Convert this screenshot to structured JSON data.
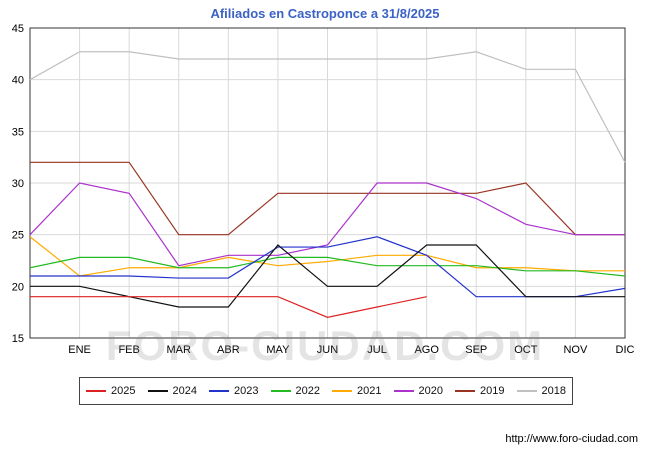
{
  "chart_data": {
    "type": "line",
    "title": "Afiliados en Castroponce a 31/8/2025",
    "title_color": "#3b62c4",
    "x_labels": [
      "ENE",
      "FEB",
      "MAR",
      "ABR",
      "MAY",
      "JUN",
      "JUL",
      "AGO",
      "SEP",
      "OCT",
      "NOV",
      "DIC"
    ],
    "ylim": [
      15,
      45
    ],
    "yticks": [
      15,
      20,
      25,
      30,
      35,
      40,
      45
    ],
    "grid": true,
    "legend_position": "bottom",
    "series": [
      {
        "name": "2025",
        "color": "#dd2222",
        "values": [
          19,
          19,
          19,
          19,
          19,
          19,
          17,
          18,
          19
        ]
      },
      {
        "name": "2024",
        "color": "#111111",
        "values": [
          20,
          20,
          19,
          18,
          18,
          24,
          20,
          20,
          24,
          24,
          19,
          19,
          19
        ]
      },
      {
        "name": "2023",
        "color": "#2233cc",
        "values": [
          21,
          21,
          21,
          20.8,
          20.8,
          23.8,
          23.8,
          24.8,
          23,
          19,
          19,
          19,
          19.8
        ]
      },
      {
        "name": "2022",
        "color": "#22bb22",
        "values": [
          21.8,
          22.8,
          22.8,
          21.8,
          21.8,
          22.8,
          22.8,
          22,
          22,
          22,
          21.5,
          21.5,
          21
        ]
      },
      {
        "name": "2021",
        "color": "#ffaa00",
        "values": [
          24.8,
          21,
          21.8,
          21.8,
          22.8,
          22,
          22.4,
          23,
          23,
          21.8,
          21.8,
          21.5,
          21.5
        ]
      },
      {
        "name": "2020",
        "color": "#aa33cc",
        "values": [
          25,
          30,
          29,
          22,
          23,
          23,
          24,
          30,
          30,
          28.5,
          26,
          25,
          25
        ]
      },
      {
        "name": "2019",
        "color": "#993322",
        "values": [
          32,
          32,
          32,
          25,
          25,
          29,
          29,
          29,
          29,
          29,
          30,
          25,
          25
        ]
      },
      {
        "name": "2018",
        "color": "#c0c0c0",
        "values": [
          40,
          42.7,
          42.7,
          42,
          42,
          42,
          42,
          42,
          42,
          42.7,
          41,
          41,
          32
        ]
      }
    ]
  },
  "watermark": {
    "text": "FORO-CIUDAD.COM"
  },
  "footer": {
    "url": "http://www.foro-ciudad.com"
  }
}
